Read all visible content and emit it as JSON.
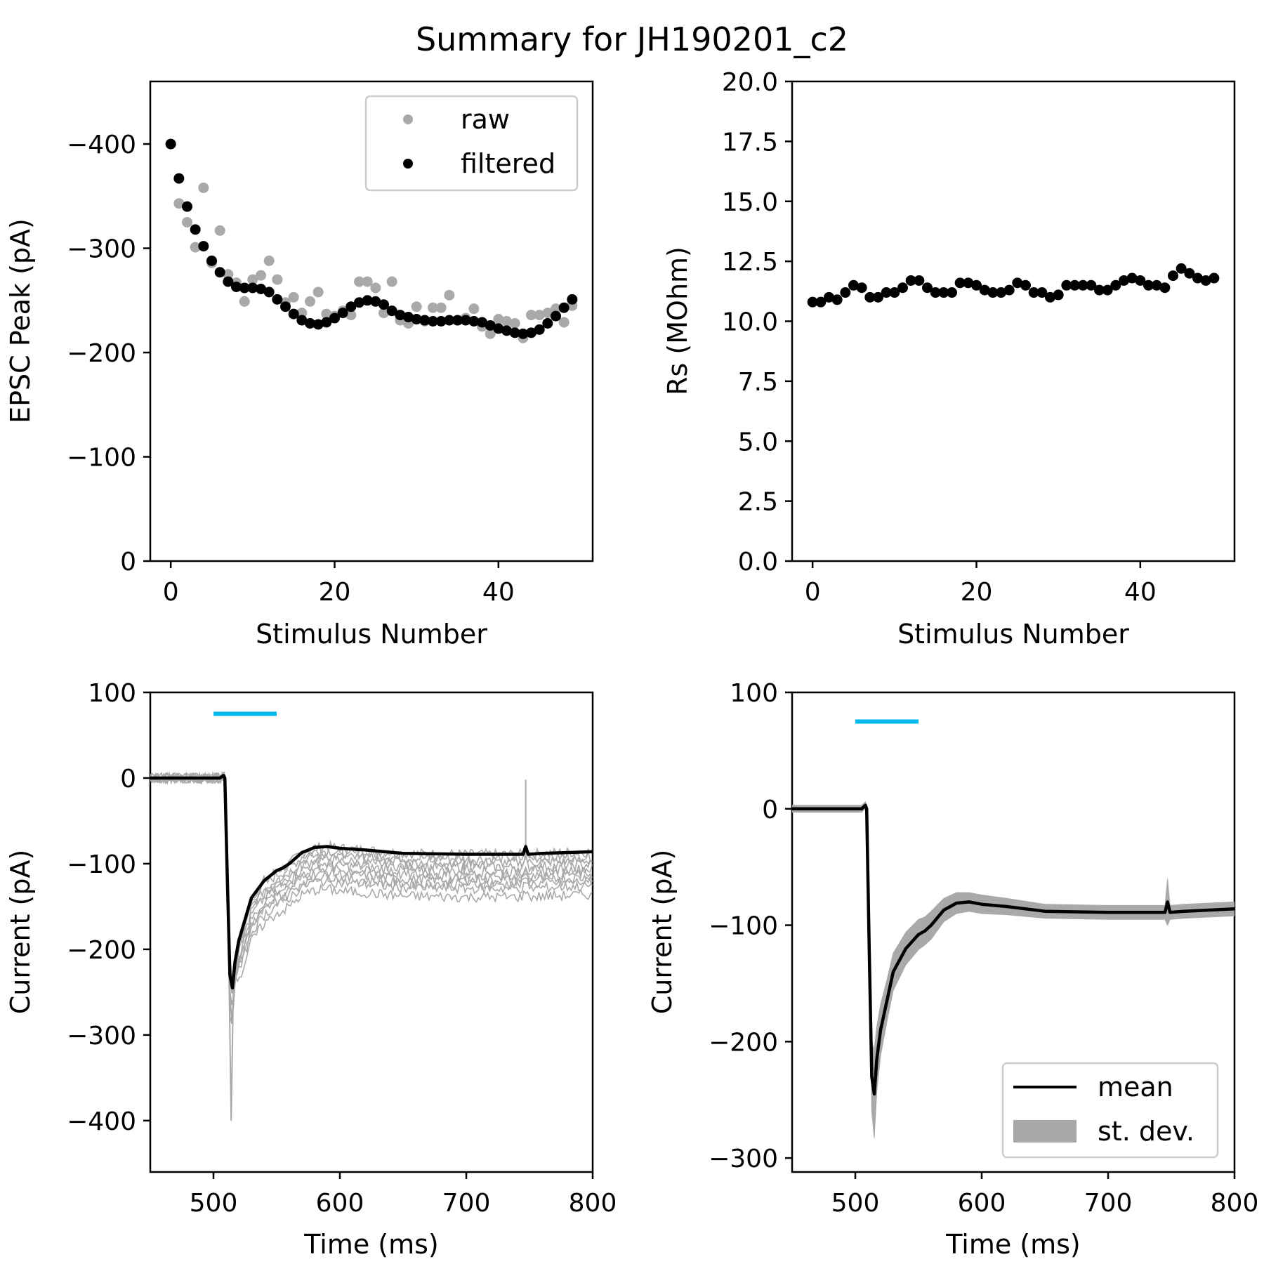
{
  "figure_title": "Summary for JH190201_c2",
  "colors": {
    "raw": "#a9a9a9",
    "filtered": "#000000",
    "mean": "#000000",
    "stdev": "#a9a9a9",
    "stim": "#00b7eb"
  },
  "chart_data": [
    {
      "id": "epsc",
      "type": "scatter",
      "title": "",
      "xlabel": "Stimulus Number",
      "ylabel": "EPSC Peak (pA)",
      "xlim": [
        -2.5,
        51.5
      ],
      "ylim": [
        0,
        -400
      ],
      "y_inverted": true,
      "ylim_note": "axis runs 0 at bottom to beyond -400 at top",
      "xticks": [
        0,
        20,
        40
      ],
      "yticks": [
        0,
        -100,
        -200,
        -300,
        -400
      ],
      "ytick_labels": [
        "0",
        "−100",
        "−200",
        "−300",
        "−400"
      ],
      "legend": {
        "position": "top-right",
        "entries": [
          "raw",
          "filtered"
        ]
      },
      "series": [
        {
          "name": "raw",
          "color": "#a9a9a9",
          "x": [
            0,
            1,
            2,
            3,
            4,
            5,
            6,
            7,
            8,
            9,
            10,
            11,
            12,
            13,
            14,
            15,
            16,
            17,
            18,
            19,
            20,
            21,
            22,
            23,
            24,
            25,
            26,
            27,
            28,
            29,
            30,
            31,
            32,
            33,
            34,
            35,
            36,
            37,
            38,
            39,
            40,
            41,
            42,
            43,
            44,
            45,
            46,
            47,
            48,
            49
          ],
          "y": [
            -400,
            -343,
            -325,
            -301,
            -358,
            -286,
            -317,
            -275,
            -267,
            -249,
            -270,
            -274,
            -288,
            -270,
            -248,
            -253,
            -238,
            -249,
            -258,
            -237,
            -235,
            -240,
            -236,
            -268,
            -268,
            -262,
            -238,
            -268,
            -231,
            -228,
            -244,
            -230,
            -243,
            -243,
            -255,
            -231,
            -233,
            -242,
            -225,
            -218,
            -232,
            -230,
            -228,
            -214,
            -236,
            -236,
            -238,
            -242,
            -229,
            -245
          ]
        },
        {
          "name": "filtered",
          "color": "#000000",
          "x": [
            0,
            1,
            2,
            3,
            4,
            5,
            6,
            7,
            8,
            9,
            10,
            11,
            12,
            13,
            14,
            15,
            16,
            17,
            18,
            19,
            20,
            21,
            22,
            23,
            24,
            25,
            26,
            27,
            28,
            29,
            30,
            31,
            32,
            33,
            34,
            35,
            36,
            37,
            38,
            39,
            40,
            41,
            42,
            43,
            44,
            45,
            46,
            47,
            48,
            49
          ],
          "y": [
            -400,
            -367,
            -340,
            -318,
            -302,
            -288,
            -277,
            -268,
            -263,
            -262,
            -262,
            -261,
            -258,
            -251,
            -244,
            -237,
            -231,
            -228,
            -227,
            -229,
            -233,
            -238,
            -244,
            -248,
            -250,
            -249,
            -246,
            -240,
            -236,
            -234,
            -232,
            -231,
            -230,
            -230,
            -231,
            -231,
            -231,
            -230,
            -229,
            -226,
            -223,
            -221,
            -219,
            -218,
            -219,
            -222,
            -228,
            -235,
            -243,
            -251
          ]
        }
      ]
    },
    {
      "id": "rs",
      "type": "scatter",
      "title": "",
      "xlabel": "Stimulus Number",
      "ylabel": "Rs (MOhm)",
      "xlim": [
        -2.5,
        51.5
      ],
      "ylim": [
        0,
        20
      ],
      "xticks": [
        0,
        20,
        40
      ],
      "yticks": [
        0,
        2.5,
        5,
        7.5,
        10,
        12.5,
        15,
        17.5,
        20
      ],
      "ytick_labels": [
        "0.0",
        "2.5",
        "5.0",
        "7.5",
        "10.0",
        "12.5",
        "15.0",
        "17.5",
        "20.0"
      ],
      "series": [
        {
          "name": "",
          "color": "#000000",
          "x": [
            0,
            1,
            2,
            3,
            4,
            5,
            6,
            7,
            8,
            9,
            10,
            11,
            12,
            13,
            14,
            15,
            16,
            17,
            18,
            19,
            20,
            21,
            22,
            23,
            24,
            25,
            26,
            27,
            28,
            29,
            30,
            31,
            32,
            33,
            34,
            35,
            36,
            37,
            38,
            39,
            40,
            41,
            42,
            43,
            44,
            45,
            46,
            47,
            48,
            49
          ],
          "y": [
            10.8,
            10.8,
            11.0,
            10.9,
            11.2,
            11.5,
            11.4,
            11.0,
            11.0,
            11.2,
            11.2,
            11.4,
            11.7,
            11.7,
            11.4,
            11.2,
            11.2,
            11.2,
            11.6,
            11.6,
            11.5,
            11.3,
            11.2,
            11.2,
            11.3,
            11.6,
            11.5,
            11.2,
            11.2,
            11.0,
            11.1,
            11.5,
            11.5,
            11.5,
            11.5,
            11.3,
            11.3,
            11.5,
            11.7,
            11.8,
            11.7,
            11.5,
            11.5,
            11.4,
            11.9,
            12.2,
            12.0,
            11.8,
            11.7,
            11.8
          ]
        }
      ]
    },
    {
      "id": "traces",
      "type": "line",
      "title": "",
      "xlabel": "Time (ms)",
      "ylabel": "Current (pA)",
      "xlim": [
        450,
        800
      ],
      "ylim": [
        -460,
        100
      ],
      "xticks": [
        500,
        600,
        700,
        800
      ],
      "yticks": [
        100,
        0,
        -100,
        -200,
        -300,
        -400
      ],
      "ytick_labels": [
        "100",
        "0",
        "−100",
        "−200",
        "−300",
        "−400"
      ],
      "stimulus_bar": {
        "x": [
          500,
          550
        ],
        "y": 75
      },
      "series": [
        {
          "name": "mean",
          "color": "#000000",
          "x": [
            450,
            470,
            490,
            505,
            508,
            509,
            511,
            513,
            515,
            517,
            520,
            525,
            530,
            540,
            550,
            555,
            560,
            570,
            580,
            590,
            600,
            620,
            650,
            700,
            745,
            747,
            749,
            760,
            800
          ],
          "y": [
            0,
            0,
            0,
            0,
            3,
            0,
            -120,
            -230,
            -245,
            -215,
            -190,
            -165,
            -140,
            -120,
            -108,
            -105,
            -100,
            -87,
            -81,
            -80,
            -82,
            -84,
            -88,
            -89,
            -89,
            -80,
            -89,
            -88,
            -86
          ]
        },
        {
          "name": "trials",
          "color": "#a9a9a9",
          "x": [
            450,
            505,
            510,
            513,
            515,
            520,
            530,
            540,
            560,
            580,
            600,
            650,
            700,
            800
          ],
          "offsets": [
            0,
            -5,
            -10,
            -15,
            -20,
            -25,
            -30,
            -35,
            -40,
            -50
          ],
          "spike": {
            "x": 747,
            "y": -2
          },
          "peak_min": -400
        }
      ]
    },
    {
      "id": "mean_sd",
      "type": "line",
      "title": "",
      "xlabel": "Time (ms)",
      "ylabel": "Current (pA)",
      "xlim": [
        450,
        800
      ],
      "ylim": [
        -310,
        100
      ],
      "xticks": [
        500,
        600,
        700,
        800
      ],
      "yticks": [
        100,
        0,
        -100,
        -200,
        -300
      ],
      "ytick_labels": [
        "100",
        "0",
        "−100",
        "−200",
        "−300"
      ],
      "stimulus_bar": {
        "x": [
          500,
          550
        ],
        "y": 75
      },
      "legend": {
        "position": "bottom-right",
        "entries": [
          "mean",
          "st. dev."
        ]
      },
      "series": [
        {
          "name": "mean",
          "color": "#000000",
          "x": [
            450,
            470,
            490,
            505,
            508,
            509,
            511,
            513,
            515,
            517,
            520,
            525,
            530,
            540,
            550,
            555,
            560,
            570,
            580,
            590,
            600,
            620,
            650,
            700,
            745,
            747,
            749,
            760,
            800
          ],
          "y": [
            0,
            0,
            0,
            0,
            3,
            0,
            -120,
            -230,
            -245,
            -215,
            -190,
            -165,
            -140,
            -120,
            -108,
            -105,
            -100,
            -87,
            -81,
            -80,
            -82,
            -84,
            -88,
            -89,
            -89,
            -80,
            -89,
            -88,
            -86
          ]
        },
        {
          "name": "st. dev.",
          "color": "#a9a9a9",
          "x": [
            450,
            470,
            490,
            505,
            508,
            509,
            511,
            513,
            515,
            517,
            520,
            525,
            530,
            540,
            550,
            555,
            560,
            570,
            580,
            590,
            600,
            620,
            650,
            700,
            745,
            747,
            749,
            760,
            800
          ],
          "sd": [
            3,
            3,
            3,
            3,
            3,
            3,
            12,
            30,
            38,
            28,
            22,
            18,
            16,
            14,
            13,
            12,
            12,
            10,
            9,
            8,
            8,
            7,
            6,
            6,
            6,
            20,
            6,
            6,
            6
          ]
        }
      ]
    }
  ]
}
